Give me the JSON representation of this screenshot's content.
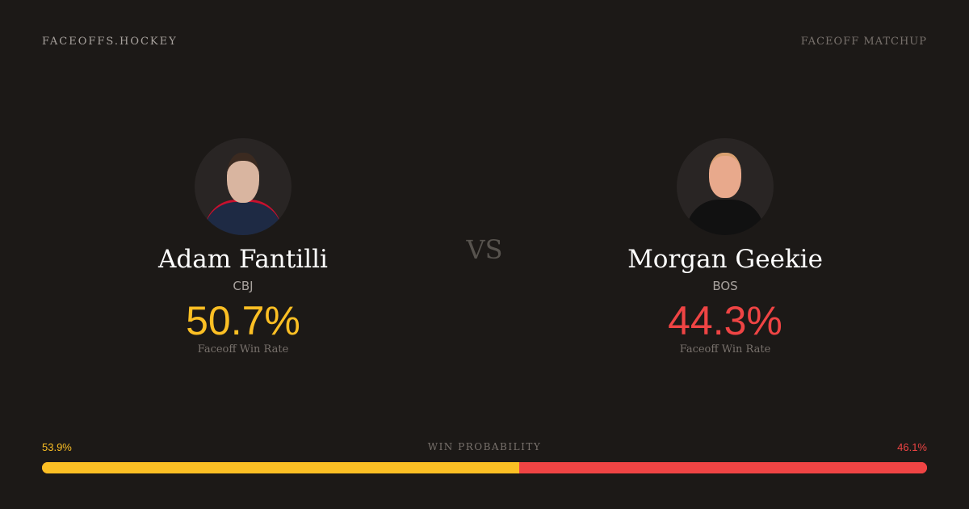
{
  "header": {
    "brand": "FACEOFFS.HOCKEY",
    "tag": "FACEOFF MATCHUP"
  },
  "players": [
    {
      "name": "Adam Fantilli",
      "team": "CBJ",
      "rate": "50.7%",
      "rate_label": "Faceoff Win Rate",
      "color": "#fbbf24"
    },
    {
      "name": "Morgan Geekie",
      "team": "BOS",
      "rate": "44.3%",
      "rate_label": "Faceoff Win Rate",
      "color": "#ef4444"
    }
  ],
  "vs": "VS",
  "probability": {
    "label": "WIN PROBABILITY",
    "left": "53.9%",
    "right": "46.1%",
    "left_value": 53.9,
    "right_value": 46.1
  }
}
